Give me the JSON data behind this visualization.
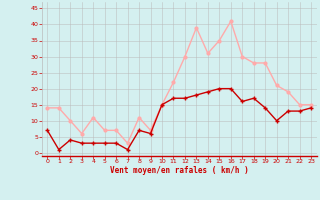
{
  "hours": [
    0,
    1,
    2,
    3,
    4,
    5,
    6,
    7,
    8,
    9,
    10,
    11,
    12,
    13,
    14,
    15,
    16,
    17,
    18,
    19,
    20,
    21,
    22,
    23
  ],
  "wind_mean": [
    7,
    1,
    4,
    3,
    3,
    3,
    3,
    1,
    7,
    6,
    15,
    17,
    17,
    18,
    19,
    20,
    20,
    16,
    17,
    14,
    10,
    13,
    13,
    14
  ],
  "wind_gust": [
    14,
    14,
    10,
    6,
    11,
    7,
    7,
    3,
    11,
    7,
    15,
    22,
    30,
    39,
    31,
    35,
    41,
    30,
    28,
    28,
    21,
    19,
    15,
    15
  ],
  "mean_color": "#cc0000",
  "gust_color": "#ffaaaa",
  "bg_color": "#d4f0f0",
  "grid_color": "#bbbbbb",
  "xlabel": "Vent moyen/en rafales ( km/h )",
  "yticks": [
    0,
    5,
    10,
    15,
    20,
    25,
    30,
    35,
    40,
    45
  ],
  "xticks": [
    0,
    1,
    2,
    3,
    4,
    5,
    6,
    7,
    8,
    9,
    10,
    11,
    12,
    13,
    14,
    15,
    16,
    17,
    18,
    19,
    20,
    21,
    22,
    23
  ],
  "ylim": [
    -1,
    47
  ],
  "xlim": [
    -0.5,
    23.5
  ],
  "xlabel_color": "#cc0000",
  "tick_color": "#cc0000",
  "markersize": 2.0,
  "linewidth": 1.0
}
